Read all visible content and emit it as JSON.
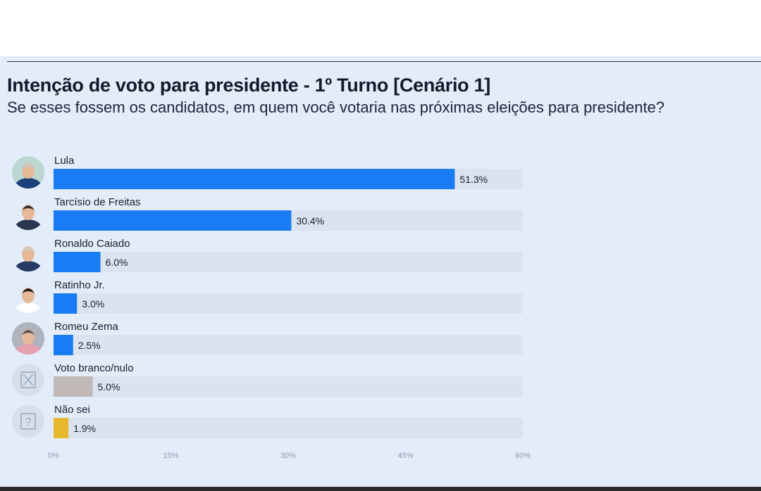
{
  "chart_data": {
    "type": "bar",
    "orientation": "horizontal",
    "title": "Intenção de voto para presidente - 1º Turno [Cenário 1]",
    "subtitle": "Se esses fossem os candidatos, em quem você votaria nas próximas eleições para presidente?",
    "categories": [
      "Lula",
      "Tarcísio de Freitas",
      "Ronaldo Caiado",
      "Ratinho Jr.",
      "Romeu Zema",
      "Voto branco/nulo",
      "Não sei"
    ],
    "values": [
      51.3,
      30.4,
      6.0,
      3.0,
      2.5,
      5.0,
      1.9
    ],
    "data_labels": [
      "51.3%",
      "30.4%",
      "6.0%",
      "3.0%",
      "2.5%",
      "5.0%",
      "1.9%"
    ],
    "bar_colors": [
      "#1a7cf5",
      "#1a7cf5",
      "#1a7cf5",
      "#1a7cf5",
      "#1a7cf5",
      "#c1b8b8",
      "#e8b82c"
    ],
    "track_color": "#dbe3ef",
    "icons": [
      "avatar-photo",
      "avatar-photo",
      "avatar-photo",
      "avatar-photo",
      "avatar-photo",
      "x-box-icon",
      "question-box-icon"
    ],
    "xlim": [
      0,
      60
    ],
    "x_ticks": [
      0,
      15,
      30,
      45,
      60
    ],
    "x_tick_labels": [
      "0%",
      "15%",
      "30%",
      "45%",
      "60%"
    ],
    "grid": false,
    "legend": "none"
  }
}
